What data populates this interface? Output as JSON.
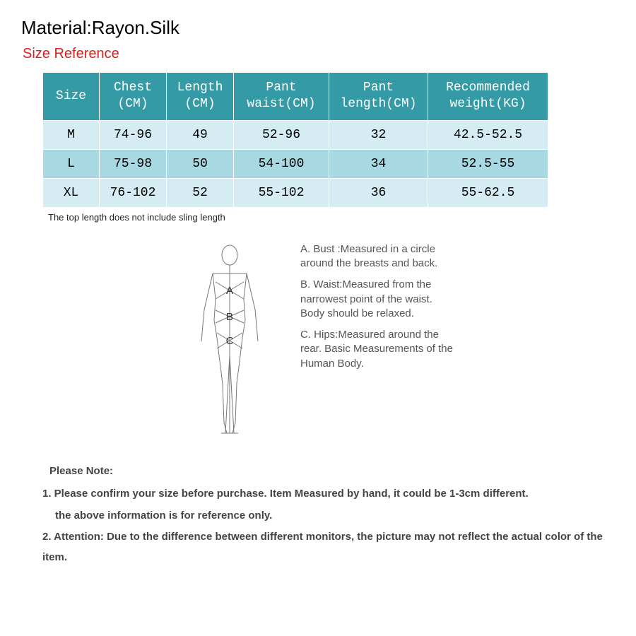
{
  "material_line": "Material:Rayon.Silk",
  "size_reference_label": "Size Reference",
  "size_reference_color": "#d9201e",
  "table": {
    "header_bg": "#349aa5",
    "header_fg": "#ffffff",
    "row_alt_bg_light": "#d6ecf3",
    "row_alt_bg_dark": "#a8d8e2",
    "columns": [
      "Size",
      "Chest (CM)",
      "Length (CM)",
      "Pant waist(CM)",
      "Pant length(CM)",
      "Recommended weight(KG)"
    ],
    "rows": [
      [
        "M",
        "74-96",
        "49",
        "52-96",
        "32",
        "42.5-52.5"
      ],
      [
        "L",
        "75-98",
        "50",
        "54-100",
        "34",
        "52.5-55"
      ],
      [
        "XL",
        "76-102",
        "52",
        "55-102",
        "36",
        "55-62.5"
      ]
    ]
  },
  "table_footnote": "The top length does not include sling length",
  "measurements": {
    "a": "A. Bust :Measured in a circle around the breasts and back.",
    "b": "B. Waist:Measured from the narrowest point of the waist. Body should be relaxed.",
    "c": "C. Hips:Measured around the rear. Basic Measurements of the Human Body.",
    "label_a": "A",
    "label_b": "B",
    "label_c": "C"
  },
  "notes": {
    "lead": "Please Note:",
    "n1a": "1. Please confirm your size before purchase.   Item Measured by hand, it could be 1-3cm different.",
    "n1b": "the above information is for reference only.",
    "n2": "2. Attention: Due to the difference between different monitors, the picture may not reflect the actual color of the item."
  },
  "figure": {
    "stroke": "#777777",
    "label_color": "#333333"
  }
}
